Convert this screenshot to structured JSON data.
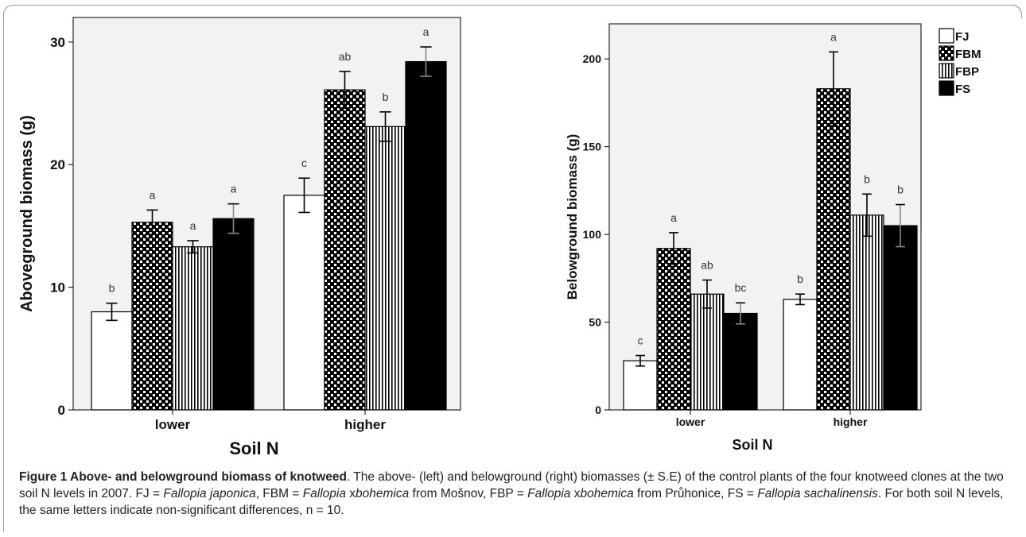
{
  "chart_data": [
    {
      "type": "bar",
      "panel": "left",
      "categories": [
        "lower",
        "higher"
      ],
      "series": [
        {
          "name": "FJ",
          "values": [
            8.0,
            17.5
          ],
          "errors": [
            0.7,
            1.4
          ],
          "letters": [
            "b",
            "c"
          ]
        },
        {
          "name": "FBM",
          "values": [
            15.3,
            26.1
          ],
          "errors": [
            1.0,
            1.5
          ],
          "letters": [
            "a",
            "ab"
          ]
        },
        {
          "name": "FBP",
          "values": [
            13.3,
            23.1
          ],
          "errors": [
            0.5,
            1.2
          ],
          "letters": [
            "a",
            "b"
          ]
        },
        {
          "name": "FS",
          "values": [
            15.6,
            28.4
          ],
          "errors": [
            1.2,
            1.2
          ],
          "letters": [
            "a",
            "a"
          ]
        }
      ],
      "xlabel": "Soil N",
      "ylabel": "Aboveground biomass (g)",
      "ylim": [
        0,
        32
      ],
      "yticks": [
        0,
        10,
        20,
        30
      ],
      "grid": false
    },
    {
      "type": "bar",
      "panel": "right",
      "categories": [
        "lower",
        "higher"
      ],
      "series": [
        {
          "name": "FJ",
          "values": [
            28,
            63
          ],
          "errors": [
            3,
            3
          ],
          "letters": [
            "c",
            "b"
          ]
        },
        {
          "name": "FBM",
          "values": [
            92,
            183
          ],
          "errors": [
            9,
            21
          ],
          "letters": [
            "a",
            "a"
          ]
        },
        {
          "name": "FBP",
          "values": [
            66,
            111
          ],
          "errors": [
            8,
            12
          ],
          "letters": [
            "ab",
            "b"
          ]
        },
        {
          "name": "FS",
          "values": [
            55,
            105
          ],
          "errors": [
            6,
            12
          ],
          "letters": [
            "bc",
            "b"
          ]
        }
      ],
      "xlabel": "Soil N",
      "ylabel": "Belowground biomass (g)",
      "ylim": [
        0,
        220
      ],
      "yticks": [
        0,
        50,
        100,
        150,
        200
      ],
      "grid": false
    }
  ],
  "legend": {
    "placement": "right",
    "entries": [
      {
        "label": "FJ",
        "pattern": "white"
      },
      {
        "label": "FBM",
        "pattern": "checker"
      },
      {
        "label": "FBP",
        "pattern": "vertical-lines"
      },
      {
        "label": "FS",
        "pattern": "black"
      }
    ]
  },
  "colors": {
    "plot_background": "#f2f2f2",
    "bar_outline": "#000000"
  },
  "caption": {
    "title": "Figure 1 Above- and belowground biomass of knotweed",
    "title_end": ".",
    "p1": " The above- (left) and belowground (right) biomasses (± S.E) of the control plants of the four knotweed clones at the two soil N levels in 2007. FJ = ",
    "fj_name": "Fallopia japonica",
    "p2": ", FBM = ",
    "fbm_genus": "Fallopia",
    "fbm_x": " x",
    "fbm_species": "bohemica",
    "p3": " from Mošnov, FBP = ",
    "fbp_genus": "Fallopia",
    "fbp_x": " x",
    "fbp_species": "bohemica",
    "p4": " from Průhonice, FS = ",
    "fs_name": "Fallopia sachalinensis",
    "p5": ". For both soil N levels, the same letters indicate non-significant differences, n = 10."
  }
}
